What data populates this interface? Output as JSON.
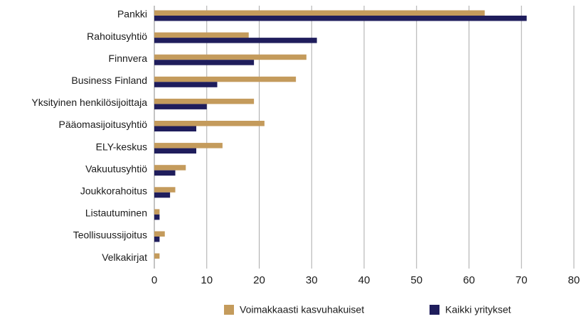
{
  "chart_data": {
    "type": "bar",
    "orientation": "horizontal",
    "categories": [
      "Pankki",
      "Rahoitusyhtiö",
      "Finnvera",
      "Business Finland",
      "Yksityinen henkilösijoittaja",
      "Pääomasijoitusyhtiö",
      "ELY-keskus",
      "Vakuutusyhtiö",
      "Joukkorahoitus",
      "Listautuminen",
      "Teollisuussijoitus",
      "Velkakirjat"
    ],
    "series": [
      {
        "name": "Voimakkaasti kasvuhakuiset",
        "color": "#c49b5c",
        "values": [
          63,
          18,
          29,
          27,
          19,
          21,
          13,
          6,
          4,
          1,
          2,
          1
        ]
      },
      {
        "name": "Kaikki yritykset",
        "color": "#1f1d5c",
        "values": [
          71,
          31,
          19,
          12,
          10,
          8,
          8,
          4,
          3,
          1,
          1,
          0
        ]
      }
    ],
    "xlim": [
      0,
      80
    ],
    "xticks": [
      0,
      10,
      20,
      30,
      40,
      50,
      60,
      70,
      80
    ],
    "grid": true,
    "legend": "bottom"
  }
}
